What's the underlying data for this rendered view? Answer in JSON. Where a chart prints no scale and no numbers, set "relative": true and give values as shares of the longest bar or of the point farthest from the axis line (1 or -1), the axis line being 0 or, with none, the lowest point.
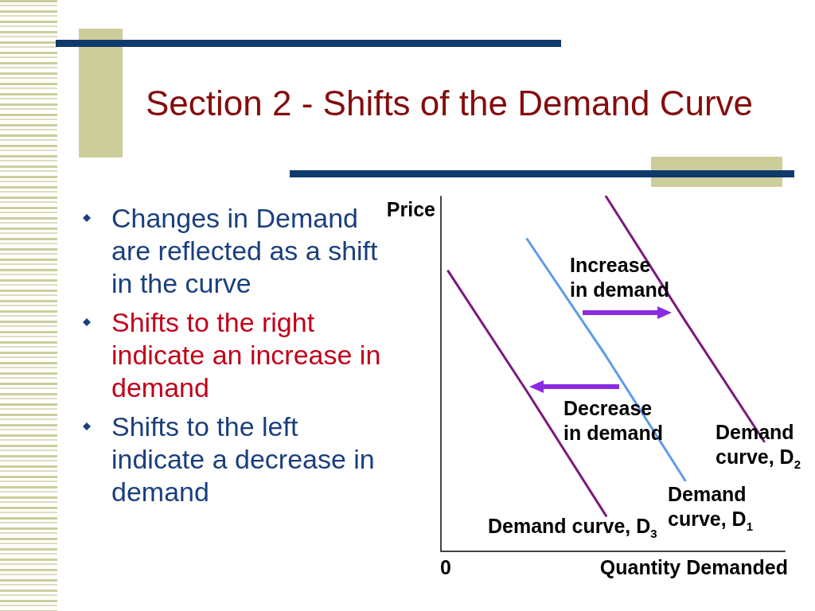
{
  "chart_data": {
    "type": "line",
    "title": "Section 2 - Shifts of the Demand Curve",
    "xlabel": "Quantity Demanded",
    "ylabel": "Price",
    "relative": true,
    "marker": "none",
    "line_style": "solid",
    "categories": [
      null,
      null,
      null,
      null,
      null
    ],
    "series": [
      {
        "name": "Demand curve, D$_{1}$",
        "color": "#5b9bea",
        "values": [
          null,
          0.88,
          0.55,
          0.2,
          null
        ]
      },
      {
        "name": "Demand curve, D$_{2}$",
        "color": "#7b1a7e",
        "values": [
          null,
          null,
          1,
          0.65,
          0.31
        ]
      },
      {
        "name": "Demand curve, D$_{3}$",
        "color": "#7b1a7e",
        "values": [
          0.79,
          0.45,
          0.1,
          null,
          null
        ]
      }
    ],
    "annotations": [
      "Changes in Demand are reflected as a shift in the curve",
      "Shifts to the right indicate an increase in demand",
      "Shifts to the left indicate a decrease in demand",
      "Increase in demand",
      "Decrease in demand",
      "0"
    ]
  }
}
